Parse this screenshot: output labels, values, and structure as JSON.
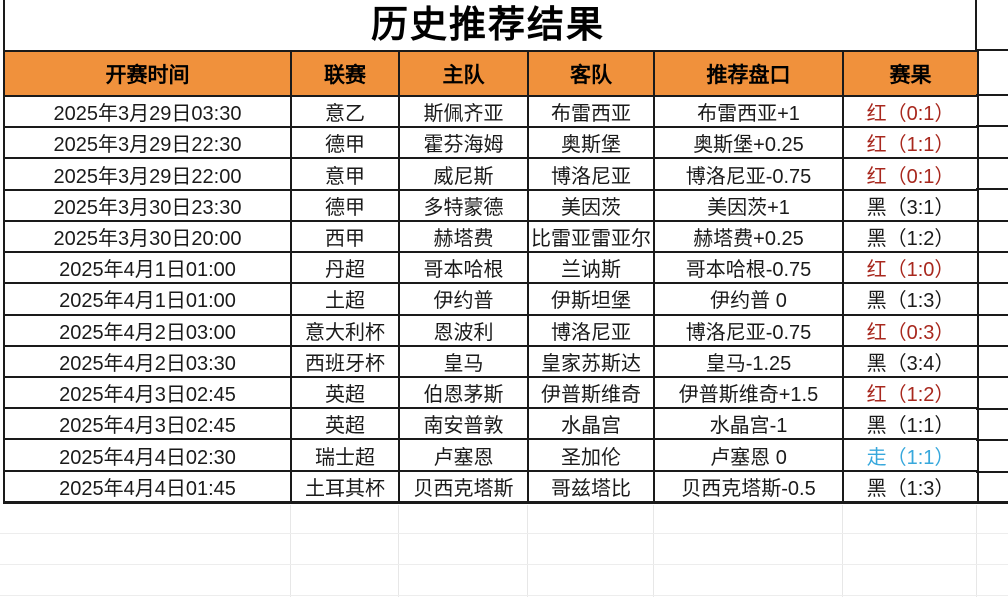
{
  "chart_data": {
    "type": "table",
    "title": "历史推荐结果",
    "columns": [
      "开赛时间",
      "联赛",
      "主队",
      "客队",
      "推荐盘口",
      "赛果"
    ],
    "rows": [
      {
        "time": "2025年3月29日03:30",
        "league": "意乙",
        "home": "斯佩齐亚",
        "away": "布雷西亚",
        "handicap": "布雷西亚+1",
        "result": "红（0:1）",
        "result_color": "red"
      },
      {
        "time": "2025年3月29日22:30",
        "league": "德甲",
        "home": "霍芬海姆",
        "away": "奥斯堡",
        "handicap": "奥斯堡+0.25",
        "result": "红（1:1）",
        "result_color": "red"
      },
      {
        "time": "2025年3月29日22:00",
        "league": "意甲",
        "home": "威尼斯",
        "away": "博洛尼亚",
        "handicap": "博洛尼亚-0.75",
        "result": "红（0:1）",
        "result_color": "red"
      },
      {
        "time": "2025年3月30日23:30",
        "league": "德甲",
        "home": "多特蒙德",
        "away": "美因茨",
        "handicap": "美因茨+1",
        "result": "黑（3:1）",
        "result_color": "black"
      },
      {
        "time": "2025年3月30日20:00",
        "league": "西甲",
        "home": "赫塔费",
        "away": "比雷亚雷亚尔",
        "handicap": "赫塔费+0.25",
        "result": "黑（1:2）",
        "result_color": "black"
      },
      {
        "time": "2025年4月1日01:00",
        "league": "丹超",
        "home": "哥本哈根",
        "away": "兰讷斯",
        "handicap": "哥本哈根-0.75",
        "result": "红（1:0）",
        "result_color": "red"
      },
      {
        "time": "2025年4月1日01:00",
        "league": "土超",
        "home": "伊约普",
        "away": "伊斯坦堡",
        "handicap": "伊约普 0",
        "result": "黑（1:3）",
        "result_color": "black"
      },
      {
        "time": "2025年4月2日03:00",
        "league": "意大利杯",
        "home": "恩波利",
        "away": "博洛尼亚",
        "handicap": "博洛尼亚-0.75",
        "result": "红（0:3）",
        "result_color": "red"
      },
      {
        "time": "2025年4月2日03:30",
        "league": "西班牙杯",
        "home": "皇马",
        "away": "皇家苏斯达",
        "handicap": "皇马-1.25",
        "result": "黑（3:4）",
        "result_color": "black"
      },
      {
        "time": "2025年4月3日02:45",
        "league": "英超",
        "home": "伯恩茅斯",
        "away": "伊普斯维奇",
        "handicap": "伊普斯维奇+1.5",
        "result": "红（1:2）",
        "result_color": "red"
      },
      {
        "time": "2025年4月3日02:45",
        "league": "英超",
        "home": "南安普敦",
        "away": "水晶宫",
        "handicap": "水晶宫-1",
        "result": "黑（1:1）",
        "result_color": "black"
      },
      {
        "time": "2025年4月4日02:30",
        "league": "瑞士超",
        "home": "卢塞恩",
        "away": "圣加伦",
        "handicap": "卢塞恩 0",
        "result": "走（1:1）",
        "result_color": "draw"
      },
      {
        "time": "2025年4月4日01:45",
        "league": "土耳其杯",
        "home": "贝西克塔斯",
        "away": "哥兹塔比",
        "handicap": "贝西克塔斯-0.5",
        "result": "黑（1:3）",
        "result_color": "black"
      }
    ]
  },
  "colors": {
    "header_bg": "#F0913C",
    "border": "#1A1A1A",
    "result_red": "#A8281E",
    "result_black": "#1A1A1A",
    "result_draw": "#38A8DC"
  }
}
